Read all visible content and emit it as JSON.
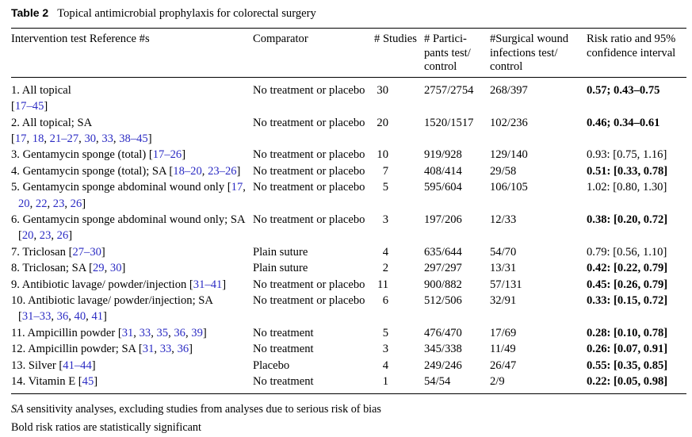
{
  "title": {
    "label": "Table 2",
    "caption": "Topical antimicrobial prophylaxis for colorectal surgery"
  },
  "colors": {
    "link_blue": "#2b2bc3",
    "text": "#000000",
    "background": "#ffffff"
  },
  "table": {
    "headers": {
      "intervention": "Intervention test Reference #s",
      "comparator": "Comparator",
      "studies": "# Studies",
      "participants": "# Partici-\npants test/\ncontrol",
      "infections": "#Surgical wound\ninfections test/\ncontrol",
      "risk": "Risk ratio and 95%\nconfidence interval"
    },
    "rows": [
      {
        "intervention": [
          [
            {
              "t": "1. All topical"
            }
          ],
          [
            {
              "t": "["
            },
            {
              "t": "17–45",
              "link": true
            },
            {
              "t": "]"
            }
          ]
        ],
        "indent_wrap": false,
        "comparator": "No treatment or placebo",
        "studies": "30",
        "participants": "2757/2754",
        "infections": "268/397",
        "risk": "0.57; 0.43–0.75",
        "risk_bold": true
      },
      {
        "intervention": [
          [
            {
              "t": "2. All topical; SA"
            }
          ],
          [
            {
              "t": "["
            },
            {
              "t": "17",
              "link": true
            },
            {
              "t": ", "
            },
            {
              "t": "18",
              "link": true
            },
            {
              "t": ", "
            },
            {
              "t": "21–27",
              "link": true
            },
            {
              "t": ", "
            },
            {
              "t": "30",
              "link": true
            },
            {
              "t": ", "
            },
            {
              "t": "33",
              "link": true
            },
            {
              "t": ", "
            },
            {
              "t": "38–45",
              "link": true
            },
            {
              "t": "]"
            }
          ]
        ],
        "indent_wrap": false,
        "comparator": "No treatment or placebo",
        "studies": "20",
        "participants": "1520/1517",
        "infections": "102/236",
        "risk": "0.46; 0.34–0.61",
        "risk_bold": true
      },
      {
        "intervention": [
          [
            {
              "t": "3. Gentamycin sponge (total) ["
            },
            {
              "t": "17–26",
              "link": true
            },
            {
              "t": "]"
            }
          ]
        ],
        "indent_wrap": false,
        "comparator": "No treatment or placebo",
        "studies": "10",
        "participants": "919/928",
        "infections": "129/140",
        "risk": "0.93: [0.75, 1.16]",
        "risk_bold": false
      },
      {
        "intervention": [
          [
            {
              "t": "4. Gentamycin sponge (total); SA ["
            },
            {
              "t": "18–20",
              "link": true
            },
            {
              "t": ", "
            },
            {
              "t": "23–26",
              "link": true
            },
            {
              "t": "]"
            }
          ]
        ],
        "indent_wrap": false,
        "comparator": "No treatment or placebo",
        "studies": "7",
        "participants": "408/414",
        "infections": "29/58",
        "risk": "0.51: [0.33, 0.78]",
        "risk_bold": true
      },
      {
        "intervention": [
          [
            {
              "t": "5. Gentamycin sponge abdominal wound only ["
            },
            {
              "t": "17",
              "link": true
            },
            {
              "t": ","
            }
          ],
          [
            {
              "t": "20",
              "link": true
            },
            {
              "t": ", "
            },
            {
              "t": "22",
              "link": true
            },
            {
              "t": ", "
            },
            {
              "t": "23",
              "link": true
            },
            {
              "t": ", "
            },
            {
              "t": "26",
              "link": true
            },
            {
              "t": "]"
            }
          ]
        ],
        "indent_wrap": true,
        "comparator": "No treatment or placebo",
        "studies": "5",
        "participants": "595/604",
        "infections": "106/105",
        "risk": "1.02: [0.80, 1.30]",
        "risk_bold": false
      },
      {
        "intervention": [
          [
            {
              "t": "6. Gentamycin sponge abdominal wound only; SA"
            }
          ],
          [
            {
              "t": "["
            },
            {
              "t": "20",
              "link": true
            },
            {
              "t": ", "
            },
            {
              "t": "23",
              "link": true
            },
            {
              "t": ", "
            },
            {
              "t": "26",
              "link": true
            },
            {
              "t": "]"
            }
          ]
        ],
        "indent_wrap": true,
        "comparator": "No treatment or placebo",
        "studies": "3",
        "participants": "197/206",
        "infections": "12/33",
        "risk": "0.38: [0.20, 0.72]",
        "risk_bold": true
      },
      {
        "intervention": [
          [
            {
              "t": "7. Triclosan ["
            },
            {
              "t": "27–30",
              "link": true
            },
            {
              "t": "]"
            }
          ]
        ],
        "indent_wrap": false,
        "comparator": "Plain suture",
        "studies": "4",
        "participants": "635/644",
        "infections": "54/70",
        "risk": "0.79: [0.56, 1.10]",
        "risk_bold": false
      },
      {
        "intervention": [
          [
            {
              "t": "8. Triclosan; SA ["
            },
            {
              "t": "29",
              "link": true
            },
            {
              "t": ", "
            },
            {
              "t": "30",
              "link": true
            },
            {
              "t": "]"
            }
          ]
        ],
        "indent_wrap": false,
        "comparator": "Plain suture",
        "studies": "2",
        "participants": "297/297",
        "infections": "13/31",
        "risk": "0.42: [0.22, 0.79]",
        "risk_bold": true
      },
      {
        "intervention": [
          [
            {
              "t": "9. Antibiotic lavage/ powder/injection ["
            },
            {
              "t": "31–41",
              "link": true
            },
            {
              "t": "]"
            }
          ]
        ],
        "indent_wrap": false,
        "comparator": "No treatment or placebo",
        "studies": "11",
        "participants": "900/882",
        "infections": "57/131",
        "risk": "0.45: [0.26, 0.79]",
        "risk_bold": true
      },
      {
        "intervention": [
          [
            {
              "t": "10. Antibiotic lavage/ powder/injection; SA"
            }
          ],
          [
            {
              "t": "["
            },
            {
              "t": "31–33",
              "link": true
            },
            {
              "t": ", "
            },
            {
              "t": "36",
              "link": true
            },
            {
              "t": ", "
            },
            {
              "t": "40",
              "link": true
            },
            {
              "t": ", "
            },
            {
              "t": "41",
              "link": true
            },
            {
              "t": "]"
            }
          ]
        ],
        "indent_wrap": true,
        "comparator": "No treatment or placebo",
        "studies": "6",
        "participants": "512/506",
        "infections": "32/91",
        "risk": "0.33: [0.15, 0.72]",
        "risk_bold": true
      },
      {
        "intervention": [
          [
            {
              "t": "11. Ampicillin powder ["
            },
            {
              "t": "31",
              "link": true
            },
            {
              "t": ", "
            },
            {
              "t": "33",
              "link": true
            },
            {
              "t": ", "
            },
            {
              "t": "35",
              "link": true
            },
            {
              "t": ", "
            },
            {
              "t": "36",
              "link": true
            },
            {
              "t": ", "
            },
            {
              "t": "39",
              "link": true
            },
            {
              "t": "]"
            }
          ]
        ],
        "indent_wrap": false,
        "comparator": "No treatment",
        "studies": "5",
        "participants": "476/470",
        "infections": "17/69",
        "risk": "0.28: [0.10, 0.78]",
        "risk_bold": true
      },
      {
        "intervention": [
          [
            {
              "t": "12. Ampicillin powder; SA ["
            },
            {
              "t": "31",
              "link": true
            },
            {
              "t": ", "
            },
            {
              "t": "33",
              "link": true
            },
            {
              "t": ", "
            },
            {
              "t": "36",
              "link": true
            },
            {
              "t": "]"
            }
          ]
        ],
        "indent_wrap": false,
        "comparator": "No treatment",
        "studies": "3",
        "participants": "345/338",
        "infections": "11/49",
        "risk": "0.26: [0.07, 0.91]",
        "risk_bold": true
      },
      {
        "intervention": [
          [
            {
              "t": "13. Silver ["
            },
            {
              "t": "41–44",
              "link": true
            },
            {
              "t": "]"
            }
          ]
        ],
        "indent_wrap": false,
        "comparator": "Placebo",
        "studies": "4",
        "participants": "249/246",
        "infections": "26/47",
        "risk": "0.55: [0.35, 0.85]",
        "risk_bold": true
      },
      {
        "intervention": [
          [
            {
              "t": "14. Vitamin E ["
            },
            {
              "t": "45",
              "link": true
            },
            {
              "t": "]"
            }
          ]
        ],
        "indent_wrap": false,
        "comparator": "No treatment",
        "studies": "1",
        "participants": "54/54",
        "infections": "2/9",
        "risk": "0.22: [0.05, 0.98]",
        "risk_bold": true
      }
    ]
  },
  "footnotes": {
    "sa_abbrev": "SA",
    "sa_text": " sensitivity analyses, excluding studies from analyses due to serious risk of bias",
    "bold_note": "Bold risk ratios are statistically significant"
  }
}
